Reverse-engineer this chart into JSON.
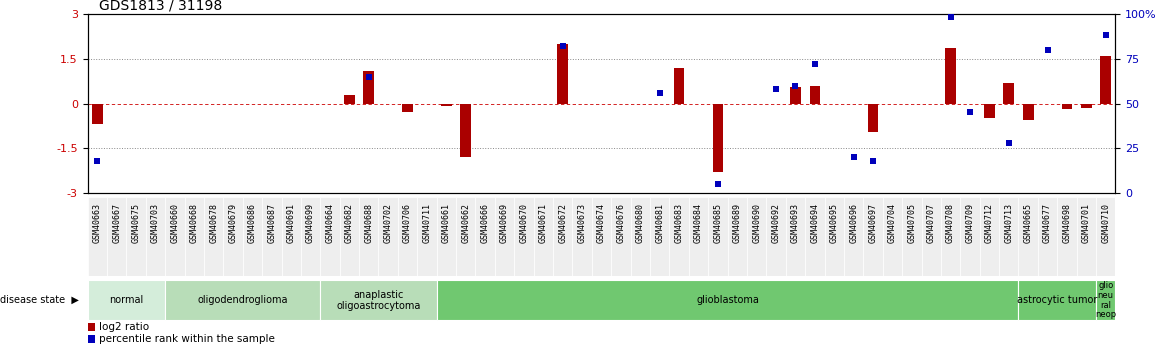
{
  "title": "GDS1813 / 31198",
  "samples": [
    "GSM40663",
    "GSM40667",
    "GSM40675",
    "GSM40703",
    "GSM40660",
    "GSM40668",
    "GSM40678",
    "GSM40679",
    "GSM40686",
    "GSM40687",
    "GSM40691",
    "GSM40699",
    "GSM40664",
    "GSM40682",
    "GSM40688",
    "GSM40702",
    "GSM40706",
    "GSM40711",
    "GSM40661",
    "GSM40662",
    "GSM40666",
    "GSM40669",
    "GSM40670",
    "GSM40671",
    "GSM40672",
    "GSM40673",
    "GSM40674",
    "GSM40676",
    "GSM40680",
    "GSM40681",
    "GSM40683",
    "GSM40684",
    "GSM40685",
    "GSM40689",
    "GSM40690",
    "GSM40692",
    "GSM40693",
    "GSM40694",
    "GSM40695",
    "GSM40696",
    "GSM40697",
    "GSM40704",
    "GSM40705",
    "GSM40707",
    "GSM40708",
    "GSM40709",
    "GSM40712",
    "GSM40713",
    "GSM40665",
    "GSM40677",
    "GSM40698",
    "GSM40701",
    "GSM40710"
  ],
  "log2_ratio": [
    -0.7,
    0.0,
    0.0,
    0.0,
    0.0,
    0.0,
    0.0,
    0.0,
    0.0,
    0.0,
    0.0,
    0.0,
    0.0,
    0.3,
    1.1,
    0.0,
    -0.3,
    0.0,
    -0.1,
    -1.8,
    0.0,
    0.0,
    0.0,
    0.0,
    2.0,
    0.0,
    0.0,
    0.0,
    0.0,
    0.0,
    1.2,
    0.0,
    -2.3,
    0.0,
    0.0,
    0.0,
    0.55,
    0.6,
    0.0,
    0.0,
    -0.95,
    0.0,
    0.0,
    0.0,
    1.85,
    0.0,
    -0.5,
    0.7,
    -0.55,
    0.0,
    -0.2,
    -0.15,
    1.6
  ],
  "percentile": [
    18,
    0,
    0,
    0,
    0,
    0,
    0,
    0,
    0,
    0,
    0,
    0,
    0,
    0,
    65,
    0,
    0,
    0,
    0,
    0,
    0,
    0,
    0,
    0,
    82,
    0,
    0,
    0,
    0,
    56,
    0,
    0,
    5,
    0,
    0,
    58,
    60,
    72,
    0,
    20,
    18,
    0,
    0,
    0,
    98,
    45,
    0,
    28,
    0,
    80,
    0,
    0,
    88
  ],
  "disease_groups": [
    {
      "label": "normal",
      "start": 0,
      "end": 4,
      "color": "#d4edda"
    },
    {
      "label": "oligodendroglioma",
      "start": 4,
      "end": 12,
      "color": "#b8ddb8"
    },
    {
      "label": "anaplastic\noligoastrocytoma",
      "start": 12,
      "end": 18,
      "color": "#b8ddb8"
    },
    {
      "label": "glioblastoma",
      "start": 18,
      "end": 48,
      "color": "#70c870"
    },
    {
      "label": "astrocytic tumor",
      "start": 48,
      "end": 52,
      "color": "#70c870"
    },
    {
      "label": "glio\nneu\nral\nneop",
      "start": 52,
      "end": 53,
      "color": "#70c870"
    }
  ],
  "ylim_left": [
    -3,
    3
  ],
  "ylim_right": [
    0,
    100
  ],
  "yticks_left": [
    -3,
    -1.5,
    0,
    1.5,
    3
  ],
  "yticks_right": [
    0,
    25,
    50,
    75,
    100
  ],
  "bar_color": "#aa0000",
  "dot_color": "#0000bb",
  "hline_color": "#cc0000",
  "dot_color_right": "#3333cc",
  "bg_color": "#ffffff"
}
